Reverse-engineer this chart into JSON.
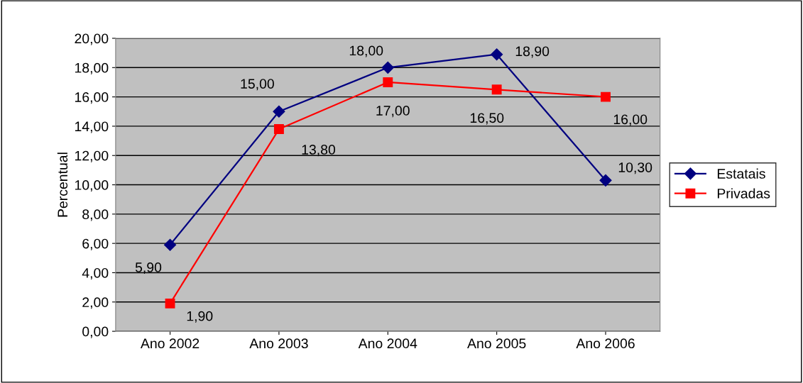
{
  "chart_data": {
    "type": "line",
    "ylabel": "Percentual",
    "categories": [
      "Ano 2002",
      "Ano 2003",
      "Ano 2004",
      "Ano 2005",
      "Ano 2006"
    ],
    "series": [
      {
        "name": "Estatais",
        "color": "#000080",
        "marker": "diamond",
        "values": [
          5.9,
          15.0,
          18.0,
          18.9,
          10.3
        ],
        "value_labels": [
          "5,90",
          "15,00",
          "18,00",
          "18,90",
          "10,30"
        ]
      },
      {
        "name": "Privadas",
        "color": "#ff0000",
        "marker": "square",
        "values": [
          1.9,
          13.8,
          17.0,
          16.5,
          16.0
        ],
        "value_labels": [
          "1,90",
          "13,80",
          "17,00",
          "16,50",
          "16,00"
        ]
      }
    ],
    "ylim": [
      0,
      20
    ],
    "yticks": [
      {
        "value": 0,
        "label": "0,00"
      },
      {
        "value": 2,
        "label": "2,00"
      },
      {
        "value": 4,
        "label": "4,00"
      },
      {
        "value": 6,
        "label": "6,00"
      },
      {
        "value": 8,
        "label": "8,00"
      },
      {
        "value": 10,
        "label": "10,00"
      },
      {
        "value": 12,
        "label": "12,00"
      },
      {
        "value": 14,
        "label": "14,00"
      },
      {
        "value": 16,
        "label": "16,00"
      },
      {
        "value": 18,
        "label": "18,00"
      },
      {
        "value": 20,
        "label": "20,00"
      }
    ],
    "grid": "y",
    "legend": "right",
    "line_style": "solid"
  }
}
